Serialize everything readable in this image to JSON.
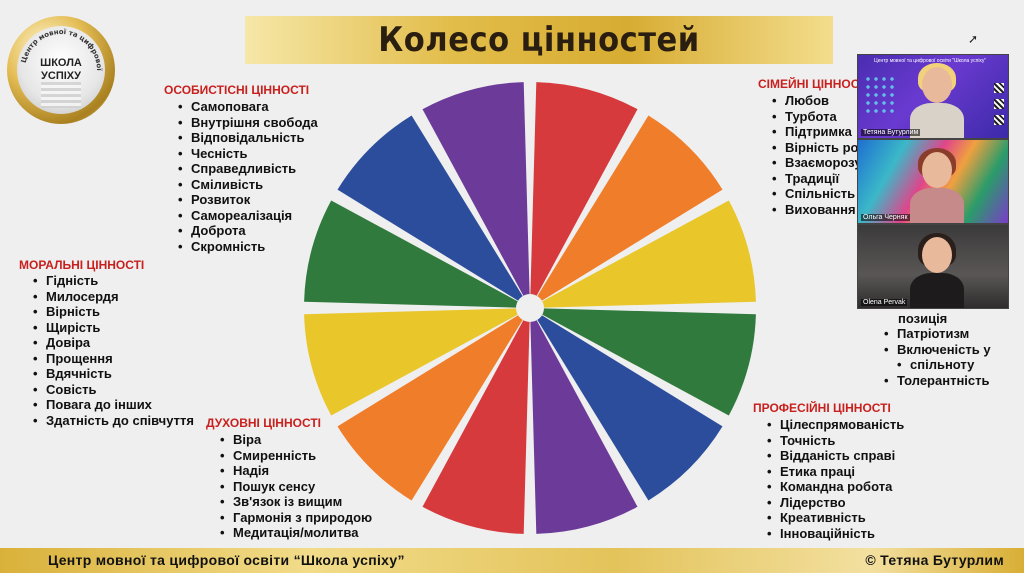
{
  "slide": {
    "title": "Колесо цінностей",
    "footer_left": "Центр мовної та цифрової освіти “Школа успіху”",
    "footer_right": "© Тетяна Бутурлим"
  },
  "logo": {
    "center_text_line1": "ШКОЛА",
    "center_text_line2": "УСПІХУ",
    "ring_text": "Центр мовної та цифрової освіти"
  },
  "categories": {
    "personal": {
      "title": "ОСОБИСТІСНІ ЦІННОСТІ",
      "items": [
        "Самоповага",
        "Внутрішня свобода",
        "Відповідальність",
        "Чесність",
        "Справедливість",
        "Сміливість",
        "Розвиток",
        "Самореалізація",
        "Доброта",
        "Скромність"
      ]
    },
    "family": {
      "title": "СІМЕЙНІ ЦІННОС",
      "items": [
        "Любов",
        "Турбота",
        "Підтримка",
        "Вірність род",
        "Взаєморозу",
        "Традиції",
        "Спільність",
        "Виховання"
      ]
    },
    "moral": {
      "title": "МОРАЛЬНІ ЦІННОСТІ",
      "items": [
        "Гідність",
        "Милосердя",
        "Вірність",
        "Щирість",
        "Довіра",
        "Прощення",
        "Вдячність",
        "Совість",
        "Повага до інших",
        "Здатність до співчуття"
      ]
    },
    "civic_partial": {
      "top_fragment": "позиція",
      "items": [
        "Патріотизм",
        "Включеність у",
        "Толерантність"
      ],
      "continuation": "спільноту"
    },
    "spiritual": {
      "title": "ДУХОВНІ ЦІННОСТІ",
      "items": [
        "Віра",
        "Смиренність",
        "Надія",
        "Пошук сенсу",
        "Зв'язок із вищим",
        "Гармонія з природою",
        "Медитація/молитва"
      ]
    },
    "professional": {
      "title": "ПРОФЕСІЙНІ ЦІННОСТІ",
      "items": [
        "Цілеспрямованість",
        "Точність",
        "Відданість справі",
        "Етика праці",
        "Командна робота",
        "Лідерство",
        "Креативність",
        "Інноваційність"
      ]
    }
  },
  "wheel": {
    "segment_colors": [
      "#d63a3c",
      "#ef7d2a",
      "#e9c62a",
      "#2f7a3c",
      "#2c4d9c",
      "#6c3a98",
      "#d63a3c",
      "#ef7d2a",
      "#e9c62a",
      "#2f7a3c",
      "#2c4d9c",
      "#6c3a98"
    ]
  },
  "video": {
    "tiles": [
      {
        "name": "Тетяна Бутурлим",
        "banner": "Центр мовної та цифрової освіти \"Школа успіху\""
      },
      {
        "name": "Ольга Черняк"
      },
      {
        "name": "Olena Pervak"
      }
    ]
  }
}
